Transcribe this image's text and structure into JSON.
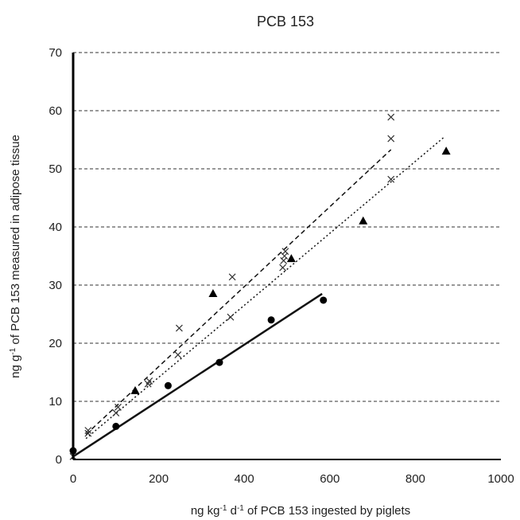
{
  "chart_data": {
    "type": "scatter",
    "title": "PCB 153",
    "xlabel_prefix": "ng kg",
    "xlabel_sup1": "-1",
    "xlabel_mid": " d",
    "xlabel_sup2": "-1",
    "xlabel_suffix": " of PCB 153 ingested by piglets",
    "ylabel_prefix": "ng g",
    "ylabel_sup": "-1",
    "ylabel_suffix": " of PCB 153 measured in adipose tissue",
    "xlim": [
      0,
      1000
    ],
    "ylim": [
      0,
      70
    ],
    "xticks": [
      0,
      200,
      400,
      600,
      800,
      1000
    ],
    "yticks": [
      0,
      10,
      20,
      30,
      40,
      50,
      60,
      70
    ],
    "grid": "horizontal dashed",
    "series": [
      {
        "marker": "circle",
        "points": [
          [
            0,
            1.5
          ],
          [
            100,
            5.7
          ],
          [
            222,
            12.7
          ],
          [
            342,
            16.7
          ],
          [
            463,
            24.0
          ],
          [
            585,
            27.4
          ]
        ]
      },
      {
        "marker": "triangle",
        "points": [
          [
            145,
            11.8
          ],
          [
            327,
            28.5
          ],
          [
            510,
            34.5
          ],
          [
            678,
            41.0
          ],
          [
            872,
            53.0
          ]
        ]
      },
      {
        "marker": "cross",
        "points": [
          [
            0,
            0.5
          ],
          [
            35,
            4.5
          ],
          [
            35,
            5.0
          ],
          [
            100,
            8.0
          ],
          [
            105,
            9.0
          ],
          [
            175,
            13.0
          ],
          [
            178,
            13.5
          ],
          [
            245,
            18.0
          ],
          [
            248,
            22.6
          ],
          [
            368,
            24.5
          ],
          [
            372,
            31.4
          ],
          [
            490,
            33.0
          ],
          [
            492,
            34.2
          ],
          [
            494,
            35.0
          ],
          [
            496,
            35.8
          ],
          [
            743,
            48.2
          ],
          [
            743,
            55.2
          ],
          [
            743,
            58.9
          ]
        ]
      }
    ],
    "trend_lines": [
      {
        "style": "solid",
        "from": [
          0,
          0.5
        ],
        "to": [
          582,
          28.5
        ]
      },
      {
        "style": "dashed",
        "from": [
          30,
          4.3
        ],
        "to": [
          743,
          53.3
        ]
      },
      {
        "style": "dotted",
        "from": [
          30,
          3.6
        ],
        "to": [
          868,
          55.5
        ]
      }
    ]
  }
}
